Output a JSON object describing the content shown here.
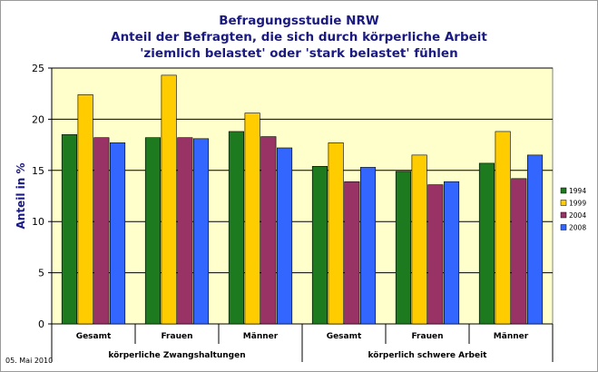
{
  "chart_data": {
    "type": "bar",
    "title_lines": [
      "Befragungsstudie NRW",
      "Anteil der Befragten, die sich durch körperliche Arbeit",
      "'ziemlich belastet' oder 'stark belastet' fühlen"
    ],
    "ylabel": "Anteil in %",
    "ylim": [
      0,
      25
    ],
    "yticks": [
      0,
      5,
      10,
      15,
      20,
      25
    ],
    "grid": true,
    "legend_position": "right",
    "categories": [
      "Gesamt",
      "Frauen",
      "Männer",
      "Gesamt",
      "Frauen",
      "Männer"
    ],
    "groups": [
      {
        "label": "körperliche Zwangshaltungen",
        "span": 3
      },
      {
        "label": "körperlich schwere Arbeit",
        "span": 3
      }
    ],
    "series": [
      {
        "name": "1994",
        "color": "#1e7a1e",
        "values": [
          18.5,
          18.2,
          18.8,
          15.4,
          14.9,
          15.7
        ]
      },
      {
        "name": "1999",
        "color": "#ffcc00",
        "values": [
          22.4,
          24.3,
          20.6,
          17.7,
          16.5,
          18.8
        ]
      },
      {
        "name": "2004",
        "color": "#993366",
        "values": [
          18.2,
          18.2,
          18.3,
          13.9,
          13.6,
          14.2
        ]
      },
      {
        "name": "2008",
        "color": "#3366ff",
        "values": [
          17.7,
          18.1,
          17.2,
          15.3,
          13.9,
          16.5
        ]
      }
    ],
    "plot_background": "#ffffcc"
  },
  "footer": "05. Mai 2010"
}
